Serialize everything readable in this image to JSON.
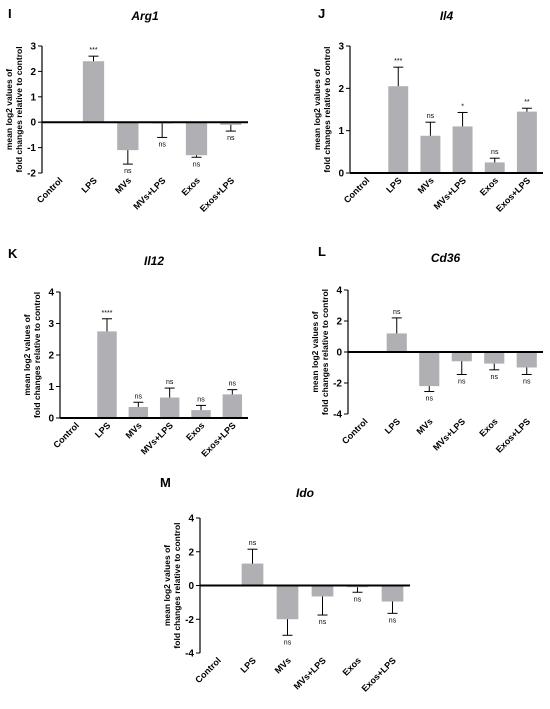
{
  "figure": {
    "background": "#ffffff",
    "bar_color": "#b0b0b4",
    "axis_color": "#000000"
  },
  "chart_data": [
    {
      "panel": "I",
      "title": "Arg1",
      "type": "bar",
      "ylabel_lines": [
        "mean log2 values of",
        "fold changes relative to control"
      ],
      "categories": [
        "Control",
        "LPS",
        "MVs",
        "MVs+LPS",
        "Exos",
        "Exos+LPS"
      ],
      "values": [
        0,
        2.4,
        -1.1,
        -0.05,
        -1.3,
        -0.1
      ],
      "errors": [
        0,
        0.2,
        0.55,
        0.55,
        0.08,
        0.25
      ],
      "sig": [
        "",
        "***",
        "ns",
        "ns",
        "ns",
        "ns"
      ],
      "ylim": [
        -2,
        3
      ],
      "yticks": [
        -2,
        -1,
        0,
        1,
        2,
        3
      ],
      "grid": false
    },
    {
      "panel": "J",
      "title": "Il4",
      "type": "bar",
      "ylabel_lines": [
        "mean log2 values of",
        "fold changes relative to control"
      ],
      "categories": [
        "Control",
        "LPS",
        "MVs",
        "MVs+LPS",
        "Exos",
        "Exos+LPS"
      ],
      "values": [
        0,
        2.05,
        0.88,
        1.1,
        0.25,
        1.45
      ],
      "errors": [
        0,
        0.45,
        0.32,
        0.33,
        0.1,
        0.08
      ],
      "sig": [
        "",
        "***",
        "ns",
        "*",
        "ns",
        "**"
      ],
      "ylim": [
        0,
        3
      ],
      "yticks": [
        0,
        1,
        2,
        3
      ],
      "grid": false
    },
    {
      "panel": "K",
      "title": "Il12",
      "type": "bar",
      "ylabel_lines": [
        "mean log2 values of",
        "fold changes relative to control"
      ],
      "categories": [
        "Control",
        "LPS",
        "MVs",
        "MVs+LPS",
        "Exos",
        "Exos+LPS"
      ],
      "values": [
        0,
        2.75,
        0.35,
        0.65,
        0.25,
        0.75
      ],
      "errors": [
        0,
        0.4,
        0.15,
        0.3,
        0.15,
        0.15
      ],
      "sig": [
        "",
        "****",
        "ns",
        "ns",
        "ns",
        "ns"
      ],
      "ylim": [
        0,
        4
      ],
      "yticks": [
        0,
        1,
        2,
        3,
        4
      ],
      "grid": false
    },
    {
      "panel": "L",
      "title": "Cd36",
      "type": "bar",
      "ylabel_lines": [
        "mean log2 values of",
        "fold changes relative to control"
      ],
      "categories": [
        "Control",
        "LPS",
        "MVs",
        "MVs+LPS",
        "Exos",
        "Exos+LPS"
      ],
      "values": [
        0,
        1.2,
        -2.2,
        -0.6,
        -0.75,
        -1.0
      ],
      "errors": [
        0,
        1.0,
        0.35,
        0.85,
        0.4,
        0.45
      ],
      "sig": [
        "",
        "ns",
        "ns",
        "ns",
        "ns",
        "ns"
      ],
      "ylim": [
        -4,
        4
      ],
      "yticks": [
        -4,
        -2,
        0,
        2,
        4
      ],
      "grid": false
    },
    {
      "panel": "M",
      "title": "Ido",
      "type": "bar",
      "ylabel_lines": [
        "mean log2 values of",
        "fold changes relative to control"
      ],
      "categories": [
        "Control",
        "LPS",
        "MVs",
        "MVs+LPS",
        "Exos",
        "Exos+LPS"
      ],
      "values": [
        0,
        1.3,
        -2.0,
        -0.65,
        -0.1,
        -0.95
      ],
      "errors": [
        0,
        0.85,
        0.95,
        1.1,
        0.3,
        0.7
      ],
      "sig": [
        "",
        "ns",
        "ns",
        "ns",
        "ns",
        "ns"
      ],
      "ylim": [
        -4,
        4
      ],
      "yticks": [
        -4,
        -2,
        0,
        2,
        4
      ],
      "grid": false
    }
  ]
}
